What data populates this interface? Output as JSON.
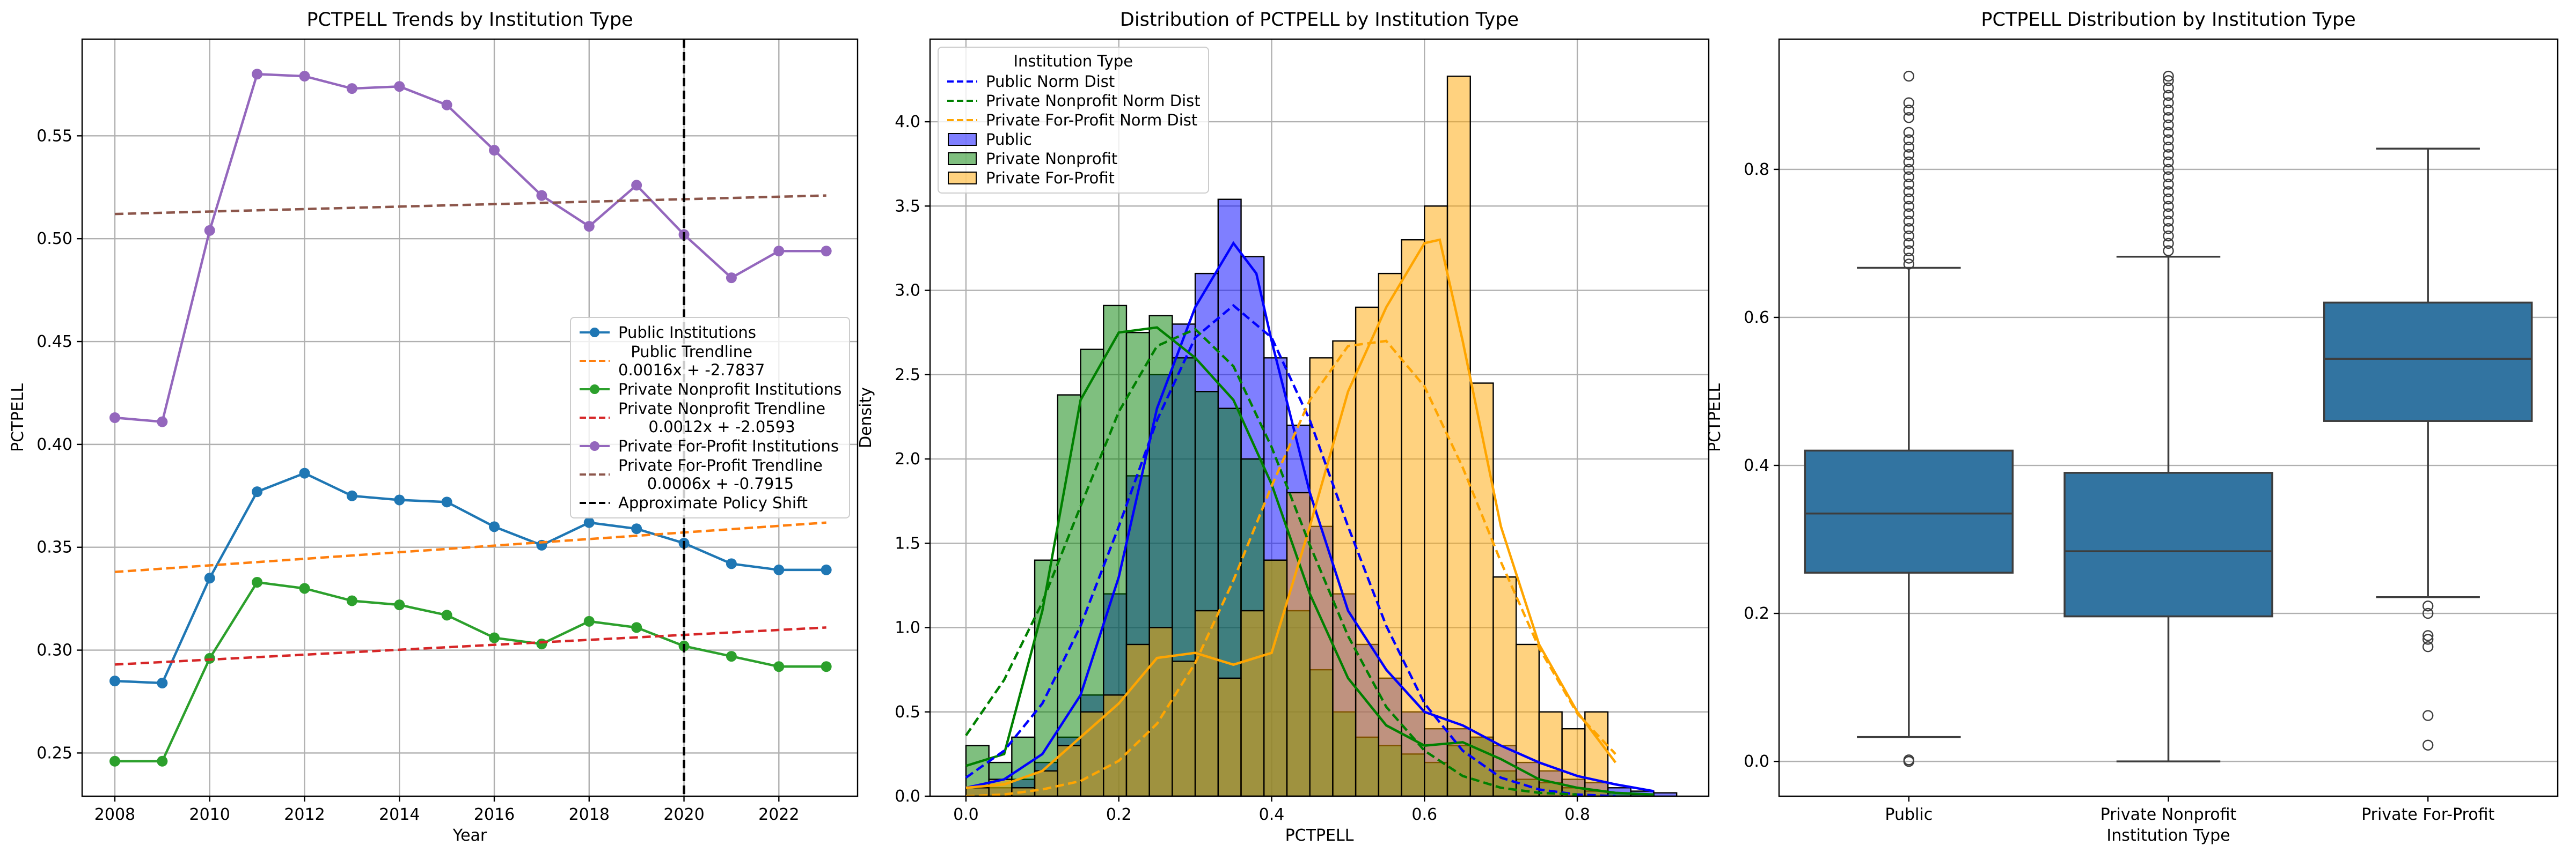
{
  "chart_data": [
    {
      "type": "line",
      "title": "PCTPELL Trends by Institution Type",
      "xlabel": "Year",
      "ylabel": "PCTPELL",
      "x": [
        2008,
        2009,
        2010,
        2011,
        2012,
        2013,
        2014,
        2015,
        2016,
        2017,
        2018,
        2019,
        2020,
        2021,
        2022,
        2023
      ],
      "series": [
        {
          "name": "Public Institutions",
          "color": "#1f77b4",
          "marker": "o",
          "values": [
            0.285,
            0.284,
            0.335,
            0.377,
            0.386,
            0.375,
            0.373,
            0.372,
            0.36,
            0.351,
            0.362,
            0.359,
            0.352,
            0.342,
            0.339,
            0.339
          ]
        },
        {
          "name": "Public Trendline\n0.0016x + -2.7837",
          "color": "#ff7f0e",
          "style": "dashed",
          "x": [
            2008,
            2023
          ],
          "values": [
            0.338,
            0.362
          ]
        },
        {
          "name": "Private Nonprofit Institutions",
          "color": "#2ca02c",
          "marker": "o",
          "values": [
            0.246,
            0.246,
            0.296,
            0.333,
            0.33,
            0.324,
            0.322,
            0.317,
            0.306,
            0.303,
            0.314,
            0.311,
            0.302,
            0.297,
            0.292,
            0.292
          ]
        },
        {
          "name": "Private Nonprofit Trendline\n0.0012x + -2.0593",
          "color": "#d62728",
          "style": "dashed",
          "x": [
            2008,
            2023
          ],
          "values": [
            0.293,
            0.311
          ]
        },
        {
          "name": "Private For-Profit Institutions",
          "color": "#9467bd",
          "marker": "o",
          "values": [
            0.413,
            0.411,
            0.504,
            0.58,
            0.579,
            0.573,
            0.574,
            0.565,
            0.543,
            0.521,
            0.506,
            0.526,
            0.502,
            0.481,
            0.494,
            0.494
          ]
        },
        {
          "name": "Private For-Profit Trendline\n0.0006x + -0.7915",
          "color": "#8c564b",
          "style": "dashed",
          "x": [
            2008,
            2023
          ],
          "values": [
            0.512,
            0.521
          ]
        }
      ],
      "vlines": [
        {
          "name": "Approximate Policy Shift",
          "x": 2020,
          "color": "#000000"
        }
      ],
      "xlim": [
        2007.31,
        2023.66
      ],
      "xticks": [
        2008,
        2010,
        2012,
        2014,
        2016,
        2018,
        2020,
        2022
      ],
      "ylim": [
        0.229,
        0.597
      ],
      "yticks": [
        0.25,
        {
          "value": 0.3,
          "label": "0.30"
        },
        0.35,
        {
          "value": 0.4,
          "label": "0.40"
        },
        0.45,
        {
          "value": 0.5,
          "label": "0.50"
        },
        0.55
      ],
      "grid": true,
      "legend": "center right"
    },
    {
      "type": "histogram",
      "title": "Distribution of PCTPELL by Institution Type",
      "xlabel": "PCTPELL",
      "ylabel": "Density",
      "legend_title": "Institution Type",
      "bins": [
        0,
        0.03,
        0.06,
        0.09,
        0.12,
        0.15,
        0.18,
        0.21,
        0.24,
        0.27,
        0.3,
        0.33,
        0.36,
        0.39,
        0.42,
        0.45,
        0.48,
        0.51,
        0.54,
        0.57,
        0.6,
        0.63,
        0.66,
        0.69,
        0.72,
        0.75,
        0.78,
        0.81,
        0.84,
        0.87,
        0.9,
        0.93
      ],
      "series": [
        {
          "name": "Public",
          "color": "#0000ff",
          "values": [
            0.05,
            0.05,
            0.1,
            0.2,
            0.35,
            0.6,
            1.2,
            1.9,
            2.5,
            2.8,
            3.1,
            3.54,
            3.2,
            2.6,
            2.2,
            1.6,
            1.2,
            0.9,
            0.7,
            0.5,
            0.4,
            0.4,
            0.35,
            0.3,
            0.2,
            0.15,
            0.1,
            0.08,
            0.05,
            0.03,
            0.02
          ],
          "kde": {
            "x": [
              0,
              0.05,
              0.1,
              0.15,
              0.2,
              0.25,
              0.3,
              0.35,
              0.38,
              0.4,
              0.45,
              0.5,
              0.55,
              0.6,
              0.65,
              0.7,
              0.75,
              0.8,
              0.85,
              0.9
            ],
            "values": [
              0.05,
              0.1,
              0.25,
              0.6,
              1.3,
              2.3,
              2.9,
              3.28,
              3.1,
              2.7,
              1.8,
              1.1,
              0.75,
              0.5,
              0.42,
              0.3,
              0.2,
              0.12,
              0.07,
              0.03
            ]
          }
        },
        {
          "name": "Private Nonprofit",
          "color": "#008000",
          "values": [
            0.3,
            0.2,
            0.35,
            1.4,
            2.38,
            2.65,
            2.91,
            2.75,
            2.85,
            2.6,
            2.4,
            2.3,
            2.0,
            1.4,
            1.1,
            0.75,
            0.5,
            0.35,
            0.3,
            0.25,
            0.2,
            0.3,
            0.35,
            0.15,
            0.1,
            0.08,
            0.05,
            0.03,
            0.02,
            0.01,
            0
          ],
          "kde": {
            "x": [
              0,
              0.05,
              0.1,
              0.15,
              0.2,
              0.25,
              0.3,
              0.35,
              0.4,
              0.45,
              0.5,
              0.55,
              0.6,
              0.65,
              0.7,
              0.75,
              0.8,
              0.85,
              0.9
            ],
            "values": [
              0.18,
              0.25,
              1.1,
              2.35,
              2.75,
              2.78,
              2.6,
              2.35,
              1.85,
              1.2,
              0.7,
              0.42,
              0.3,
              0.32,
              0.22,
              0.1,
              0.05,
              0.02,
              0.01
            ]
          }
        },
        {
          "name": "Private For-Profit",
          "color": "#ffa500",
          "values": [
            0.05,
            0.1,
            0.05,
            0.15,
            0.3,
            0.5,
            0.6,
            0.9,
            1.0,
            0.8,
            1.1,
            0.7,
            1.1,
            1.4,
            1.8,
            2.6,
            2.7,
            2.9,
            3.1,
            3.3,
            3.5,
            4.27,
            2.45,
            1.3,
            0.9,
            0.5,
            0.4,
            0.5,
            0,
            0,
            0
          ],
          "kde": {
            "x": [
              0,
              0.05,
              0.1,
              0.15,
              0.2,
              0.25,
              0.3,
              0.35,
              0.4,
              0.45,
              0.5,
              0.55,
              0.6,
              0.62,
              0.65,
              0.7,
              0.75,
              0.8,
              0.85
            ],
            "values": [
              0.05,
              0.07,
              0.15,
              0.35,
              0.55,
              0.82,
              0.85,
              0.78,
              0.85,
              1.6,
              2.4,
              2.9,
              3.28,
              3.3,
              2.7,
              1.6,
              0.9,
              0.5,
              0.2
            ]
          }
        }
      ],
      "norm_curves": [
        {
          "name": "Public Norm Dist",
          "color": "#0000ff",
          "x": [
            0,
            0.05,
            0.1,
            0.15,
            0.2,
            0.25,
            0.3,
            0.35,
            0.4,
            0.45,
            0.5,
            0.55,
            0.6,
            0.65,
            0.7,
            0.75,
            0.8,
            0.85
          ],
          "values": [
            0.11,
            0.27,
            0.55,
            1.01,
            1.6,
            2.23,
            2.72,
            2.91,
            2.72,
            2.23,
            1.6,
            1.01,
            0.55,
            0.27,
            0.11,
            0.04,
            0.01,
            0
          ]
        },
        {
          "name": "Private Nonprofit Norm Dist",
          "color": "#008000",
          "x": [
            0,
            0.05,
            0.1,
            0.15,
            0.2,
            0.25,
            0.3,
            0.35,
            0.4,
            0.45,
            0.5,
            0.55,
            0.6,
            0.65,
            0.7,
            0.75,
            0.8
          ],
          "values": [
            0.36,
            0.69,
            1.15,
            1.72,
            2.28,
            2.67,
            2.77,
            2.55,
            2.07,
            1.49,
            0.95,
            0.53,
            0.27,
            0.12,
            0.05,
            0.02,
            0.01
          ]
        },
        {
          "name": "Private For-Profit Norm Dist",
          "color": "#ffa500",
          "x": [
            0,
            0.05,
            0.1,
            0.15,
            0.2,
            0.25,
            0.3,
            0.35,
            0.4,
            0.45,
            0.5,
            0.55,
            0.6,
            0.65,
            0.7,
            0.75,
            0.8,
            0.85
          ],
          "values": [
            0,
            0.01,
            0.04,
            0.09,
            0.21,
            0.43,
            0.79,
            1.28,
            1.84,
            2.35,
            2.67,
            2.7,
            2.43,
            1.95,
            1.39,
            0.88,
            0.49,
            0.25
          ]
        }
      ],
      "xlim": [
        -0.047,
        0.972
      ],
      "xticks": [
        {
          "value": 0,
          "label": "0.0"
        },
        0.2,
        0.4,
        0.6,
        0.8
      ],
      "ylim": [
        0,
        4.49
      ],
      "yticks": [
        {
          "value": 0,
          "label": "0.0"
        },
        0.5,
        {
          "value": 1,
          "label": "1.0"
        },
        1.5,
        {
          "value": 2,
          "label": "2.0"
        },
        2.5,
        {
          "value": 3,
          "label": "3.0"
        },
        3.5,
        {
          "value": 4,
          "label": "4.0"
        }
      ],
      "grid": true,
      "legend": "upper left"
    },
    {
      "type": "box",
      "title": "PCTPELL Distribution by Institution Type",
      "xlabel": "Institution Type",
      "ylabel": "PCTPELL",
      "categories": [
        "Public",
        "Private Nonprofit",
        "Private For-Profit"
      ],
      "color": "#3274a1",
      "boxes": [
        {
          "whisker_low": 0.033,
          "q1": 0.255,
          "median": 0.335,
          "q3": 0.42,
          "whisker_high": 0.667,
          "outliers": [
            0,
            0.002,
            0.672,
            0.68,
            0.69,
            0.7,
            0.71,
            0.72,
            0.73,
            0.74,
            0.75,
            0.76,
            0.77,
            0.78,
            0.79,
            0.8,
            0.81,
            0.82,
            0.83,
            0.84,
            0.85,
            0.87,
            0.88,
            0.89,
            0.926
          ]
        },
        {
          "whisker_low": 0,
          "q1": 0.196,
          "median": 0.284,
          "q3": 0.39,
          "whisker_high": 0.682,
          "outliers": [
            0.69,
            0.7,
            0.71,
            0.72,
            0.73,
            0.74,
            0.75,
            0.76,
            0.77,
            0.78,
            0.79,
            0.8,
            0.81,
            0.82,
            0.83,
            0.84,
            0.85,
            0.86,
            0.87,
            0.88,
            0.89,
            0.9,
            0.91,
            0.92,
            0.926
          ]
        },
        {
          "whisker_low": 0.222,
          "q1": 0.46,
          "median": 0.544,
          "q3": 0.62,
          "whisker_high": 0.828,
          "outliers": [
            0.21,
            0.2,
            0.17,
            0.165,
            0.155,
            0.062,
            0.022
          ]
        }
      ],
      "ylim": [
        -0.047,
        0.976
      ],
      "yticks": [
        {
          "value": 0,
          "label": "0.0"
        },
        0.2,
        0.4,
        0.6,
        0.8
      ],
      "grid": "y"
    }
  ]
}
